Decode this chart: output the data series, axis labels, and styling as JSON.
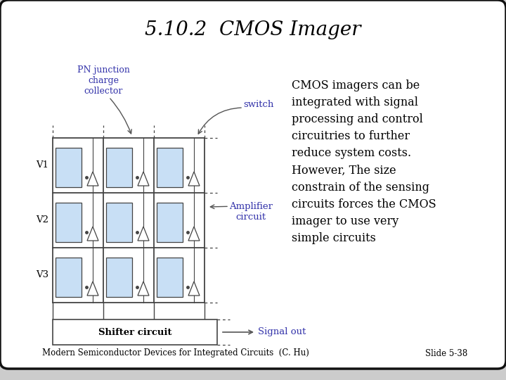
{
  "title": "5.10.2  CMOS Imager",
  "title_fontsize": 20,
  "bg_color": "#cccccc",
  "body_text": "CMOS imagers can be\nintegrated with signal\nprocessing and control\ncircuitries to further\nreduce system costs.\nHowever, The size\nconstrain of the sensing\ncircuits forces the CMOS\nimager to use very\nsimple circuits",
  "body_text_fontsize": 11.5,
  "footer_left": "Modern Semiconductor Devices for Integrated Circuits  (C. Hu)",
  "footer_right": "Slide 5-38",
  "footer_fontsize": 8.5,
  "label_pn": "PN junction\ncharge\ncollector",
  "label_switch": "switch",
  "label_amplifier": "Amplifier\ncircuit",
  "label_shifter": "Shifter circuit",
  "label_signal": "Signal out",
  "label_v1": "V1",
  "label_v2": "V2",
  "label_v3": "V3",
  "blue_label_color": "#3333aa",
  "cell_fill": "#c8dff5",
  "cell_edge": "#444444",
  "line_color": "#444444",
  "signal_arrow_color": "#555555"
}
